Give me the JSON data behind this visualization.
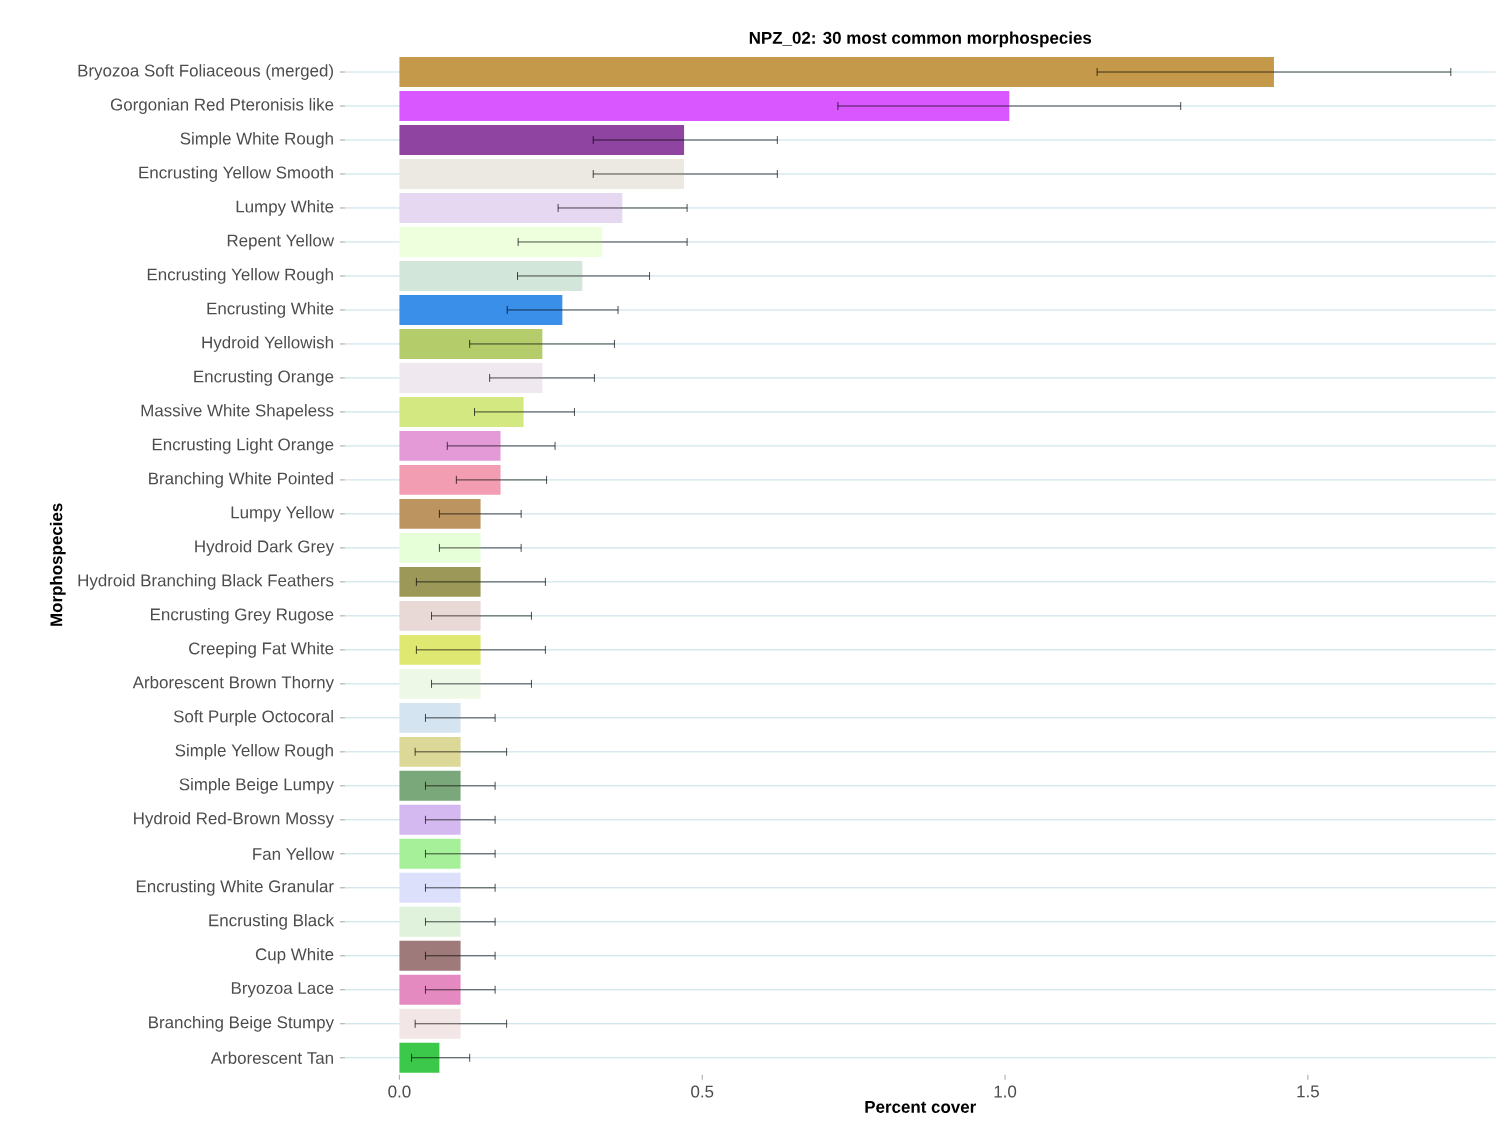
{
  "chart_data": {
    "type": "bar",
    "orientation": "horizontal",
    "title": "NPZ_02: 30 most common morphospecies",
    "xlabel": "Percent cover",
    "ylabel": "Morphospecies",
    "categories": [
      "Bryozoa Soft Foliaceous (merged)",
      "Gorgonian Red Pteronisis like",
      "Simple White Rough",
      "Encrusting Yellow Smooth",
      "Lumpy White",
      "Repent Yellow",
      "Encrusting Yellow Rough",
      "Encrusting White",
      "Hydroid Yellowish",
      "Encrusting Orange",
      "Massive White Shapeless",
      "Encrusting Light Orange",
      "Branching White Pointed",
      "Lumpy Yellow",
      "Hydroid Dark Grey",
      "Hydroid Branching Black Feathers",
      "Encrusting Grey Rugose",
      "Creeping Fat White",
      "Arborescent Brown Thorny",
      "Soft Purple Octocoral",
      "Simple Yellow Rough",
      "Simple Beige Lumpy",
      "Hydroid Red-Brown Mossy",
      "Fan Yellow",
      "Encrusting White Granular",
      "Encrusting Black",
      "Cup White",
      "Bryozoa Lace",
      "Branching Beige Stumpy",
      "Arborescent Tan"
    ],
    "values": [
      1.444,
      1.007,
      0.47,
      0.47,
      0.368,
      0.335,
      0.302,
      0.269,
      0.236,
      0.236,
      0.205,
      0.167,
      0.167,
      0.134,
      0.134,
      0.134,
      0.134,
      0.134,
      0.134,
      0.101,
      0.101,
      0.101,
      0.101,
      0.101,
      0.101,
      0.101,
      0.101,
      0.101,
      0.101,
      0.066
    ],
    "errors": [
      [
        1.152,
        1.736
      ],
      [
        0.724,
        1.29
      ],
      [
        0.32,
        0.624
      ],
      [
        0.32,
        0.624
      ],
      [
        0.262,
        0.475
      ],
      [
        0.196,
        0.475
      ],
      [
        0.195,
        0.413
      ],
      [
        0.178,
        0.361
      ],
      [
        0.116,
        0.355
      ],
      [
        0.149,
        0.322
      ],
      [
        0.124,
        0.289
      ],
      [
        0.079,
        0.257
      ],
      [
        0.094,
        0.243
      ],
      [
        0.066,
        0.201
      ],
      [
        0.066,
        0.201
      ],
      [
        0.028,
        0.241
      ],
      [
        0.053,
        0.218
      ],
      [
        0.028,
        0.241
      ],
      [
        0.053,
        0.218
      ],
      [
        0.043,
        0.158
      ],
      [
        0.026,
        0.177
      ],
      [
        0.043,
        0.158
      ],
      [
        0.043,
        0.158
      ],
      [
        0.043,
        0.158
      ],
      [
        0.043,
        0.158
      ],
      [
        0.043,
        0.158
      ],
      [
        0.043,
        0.158
      ],
      [
        0.043,
        0.158
      ],
      [
        0.026,
        0.177
      ],
      [
        0.02,
        0.116
      ]
    ],
    "colors": [
      "#c49a4a",
      "#d957ff",
      "#8e44a0",
      "#ece8e2",
      "#e6d8f0",
      "#eeffdd",
      "#d2e6da",
      "#3a8fe8",
      "#b5cc6a",
      "#efe8ee",
      "#d4e882",
      "#e59ad8",
      "#f29db2",
      "#bc9460",
      "#e6ffd8",
      "#9c9858",
      "#e8d8d6",
      "#dfe870",
      "#eef8e6",
      "#d4e4f0",
      "#dcd898",
      "#7aa87a",
      "#d4b8f0",
      "#a6f09a",
      "#dde0fa",
      "#e0f2dc",
      "#9e7a7a",
      "#e58ac0",
      "#f2e6e6",
      "#3cc84a"
    ],
    "xlim": [
      -0.09,
      1.81
    ],
    "xticks": [
      {
        "value": 0,
        "label": "0.0"
      },
      {
        "value": 0.5,
        "label": "0.5"
      },
      {
        "value": 1,
        "label": "1.0"
      },
      {
        "value": 1.5,
        "label": "1.5"
      }
    ],
    "grid": "y"
  }
}
